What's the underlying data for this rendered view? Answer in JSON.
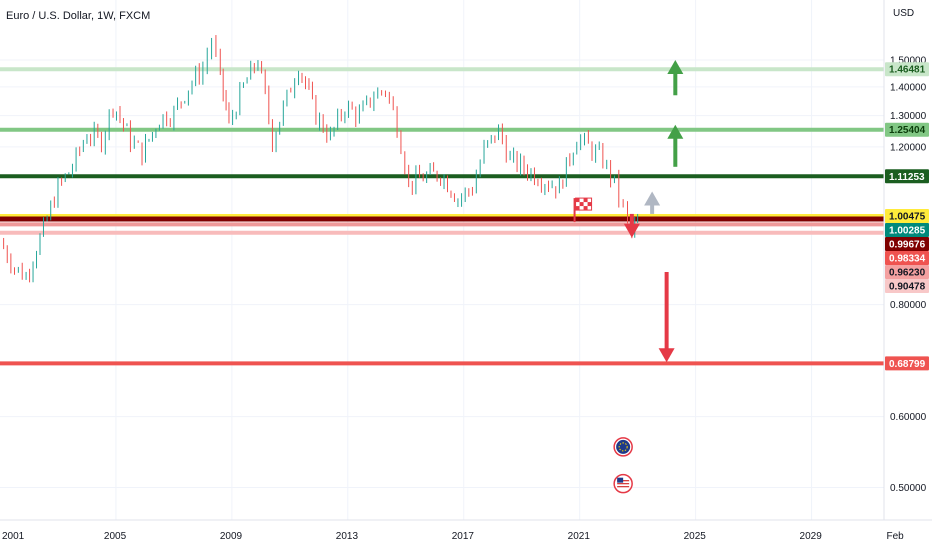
{
  "header": {
    "title": "Euro / U.S. Dollar, 1W, FXCM",
    "currency": "USD"
  },
  "chart_data": {
    "type": "line",
    "title": "Euro / U.S. Dollar, 1W, FXCM",
    "xlabel": "",
    "ylabel": "USD",
    "log_scale": true,
    "ylim": [
      0.46,
      1.75
    ],
    "xlim": [
      2001.0,
      2031.5
    ],
    "x_ticks": [
      {
        "label": "2001",
        "value": 2001
      },
      {
        "label": "2005",
        "value": 2005
      },
      {
        "label": "2009",
        "value": 2009
      },
      {
        "label": "2013",
        "value": 2013
      },
      {
        "label": "2017",
        "value": 2017
      },
      {
        "label": "2021",
        "value": 2021
      },
      {
        "label": "2025",
        "value": 2025
      },
      {
        "label": "2029",
        "value": 2029
      },
      {
        "label": "Feb",
        "value": 2032
      }
    ],
    "y_ticks": [
      "1.50000",
      "1.40000",
      "1.30000",
      "1.20000",
      "0.80000",
      "0.60000",
      "0.50000"
    ],
    "price_series": {
      "x": [
        2001.0,
        2001.5,
        2001.9,
        2002.5,
        2003.0,
        2003.5,
        2004.0,
        2004.5,
        2004.9,
        2005.5,
        2005.9,
        2006.5,
        2007.0,
        2007.5,
        2008.0,
        2008.3,
        2008.6,
        2008.9,
        2009.4,
        2009.9,
        2010.4,
        2010.9,
        2011.3,
        2011.9,
        2012.4,
        2012.9,
        2013.4,
        2013.9,
        2014.3,
        2014.7,
        2015.1,
        2015.6,
        2016.2,
        2016.8,
        2017.3,
        2017.7,
        2018.2,
        2018.6,
        2019.2,
        2019.8,
        2020.3,
        2020.9,
        2021.3,
        2021.8,
        2022.2,
        2022.5,
        2022.8,
        2023.0
      ],
      "y": [
        0.94,
        0.88,
        0.86,
        0.97,
        1.08,
        1.14,
        1.24,
        1.22,
        1.34,
        1.22,
        1.18,
        1.29,
        1.31,
        1.4,
        1.47,
        1.58,
        1.43,
        1.27,
        1.4,
        1.5,
        1.22,
        1.36,
        1.48,
        1.3,
        1.23,
        1.33,
        1.3,
        1.37,
        1.39,
        1.27,
        1.09,
        1.11,
        1.12,
        1.05,
        1.08,
        1.19,
        1.25,
        1.16,
        1.13,
        1.1,
        1.08,
        1.23,
        1.2,
        1.16,
        1.09,
        1.02,
        0.96,
        0.99
      ]
    },
    "price_levels": [
      {
        "label": "1.46481",
        "value": 1.46481,
        "line_color": "#c8e6c9",
        "tag_bg": "#c8e6c9",
        "tag_text_color": "#1b5e20",
        "line_width": 4
      },
      {
        "label": "1.25404",
        "value": 1.25404,
        "line_color": "#81c784",
        "tag_bg": "#81c784",
        "tag_text_color": "#0b3d0b",
        "line_width": 4
      },
      {
        "label": "1.11253",
        "value": 1.11253,
        "line_color": "#1b5e20",
        "tag_bg": "#1b5e20",
        "tag_text_color": "#ffffff",
        "line_width": 4
      },
      {
        "label": "1.00475",
        "value": 1.00475,
        "line_color": "#ffeb3b",
        "tag_bg": "#ffeb3b",
        "tag_text_color": "#131722",
        "line_width": 4
      },
      {
        "label": "1.00285",
        "value": 1.00285,
        "line_color": "#00897b",
        "tag_bg": "#00897b",
        "tag_text_color": "#ffffff",
        "line_width": 0
      },
      {
        "label": "0.99676",
        "value": 0.99676,
        "line_color": "#7f0000",
        "tag_bg": "#7f0000",
        "tag_text_color": "#ffffff",
        "line_width": 5
      },
      {
        "label": "0.98334",
        "value": 0.98334,
        "line_color": "#ef9a9a",
        "tag_bg": "#ef5350",
        "tag_text_color": "#ffffff",
        "line_width": 4
      },
      {
        "label": "0.96230",
        "value": 0.9623,
        "line_color": "#f8bbbb",
        "tag_bg": "#f4a0a0",
        "tag_text_color": "#131722",
        "line_width": 4
      },
      {
        "label": "0.90478",
        "value": 0.90478,
        "line_color": "#fde0e0",
        "tag_bg": "#f8c8c8",
        "tag_text_color": "#131722",
        "line_width": 0
      },
      {
        "label": "0.68799",
        "value": 0.68799,
        "line_color": "#ef5350",
        "tag_bg": "#ef5350",
        "tag_text_color": "#ffffff",
        "line_width": 4
      }
    ],
    "arrows": [
      {
        "direction": "up",
        "color": "#43a047",
        "x": 2024.3,
        "from": 1.37,
        "to": 1.5
      },
      {
        "direction": "up",
        "color": "#43a047",
        "x": 2024.3,
        "from": 1.14,
        "to": 1.27
      },
      {
        "direction": "up",
        "color": "#b0b7c3",
        "x": 2023.5,
        "from": 1.01,
        "to": 1.07
      },
      {
        "direction": "down",
        "color": "#e53946",
        "x": 2022.8,
        "from": 1.01,
        "to": 0.95
      },
      {
        "direction": "down",
        "color": "#e53946",
        "x": 2024.0,
        "from": 0.87,
        "to": 0.69
      }
    ],
    "icons": [
      {
        "name": "flag-icon",
        "x": 2021.1,
        "y": 1.02
      },
      {
        "name": "eu-flag-icon",
        "x": 2022.5,
        "y": 0.555
      },
      {
        "name": "us-flag-icon",
        "x": 2022.5,
        "y": 0.505
      }
    ],
    "colors": {
      "up_candle": "#26a69a",
      "down_candle": "#ef5350",
      "grid": "#f0f3fa",
      "axis_border": "#e0e3eb"
    }
  }
}
